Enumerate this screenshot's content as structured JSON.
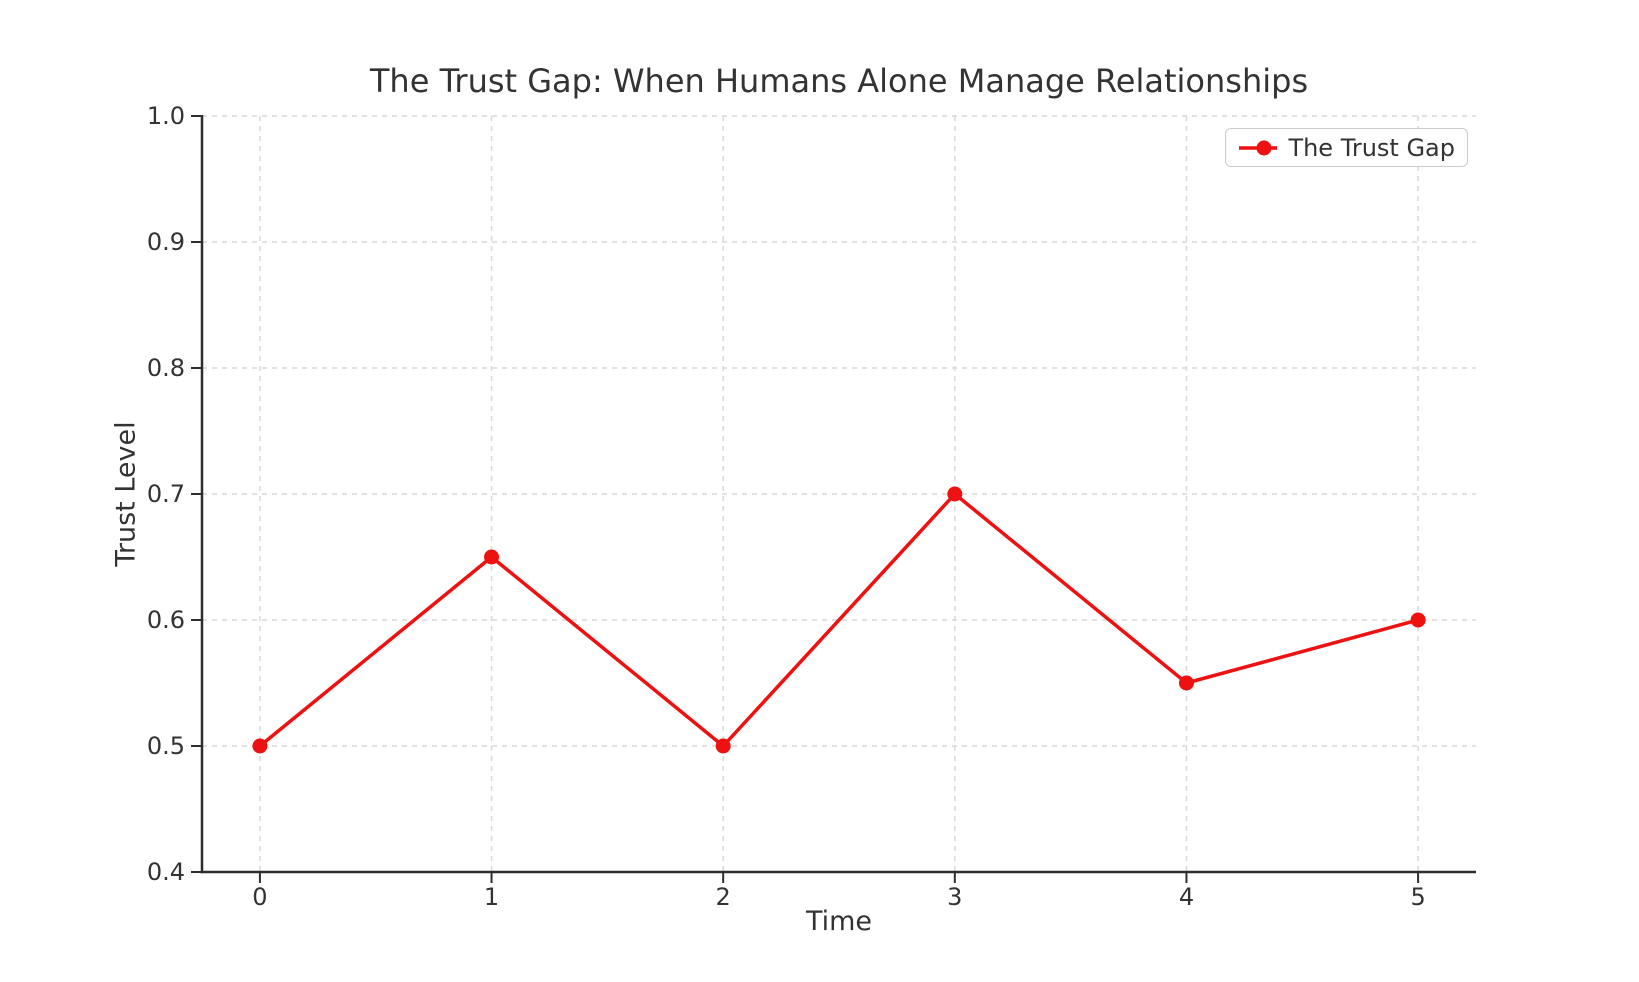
{
  "chart_data": {
    "type": "line",
    "title": "The Trust Gap: When Humans Alone Manage Relationships",
    "xlabel": "Time",
    "ylabel": "Trust Level",
    "x": [
      0,
      1,
      2,
      3,
      4,
      5
    ],
    "series": [
      {
        "name": "The Trust Gap",
        "values": [
          0.5,
          0.65,
          0.5,
          0.7,
          0.55,
          0.6
        ],
        "color": "#ee1111",
        "marker": "circle"
      }
    ],
    "xlim": [
      -0.25,
      5.25
    ],
    "ylim": [
      0.4,
      1.0
    ],
    "x_ticks": [
      0,
      1,
      2,
      3,
      4,
      5
    ],
    "x_tick_labels": [
      "0",
      "1",
      "2",
      "3",
      "4",
      "5"
    ],
    "y_ticks": [
      0.4,
      0.5,
      0.6,
      0.7,
      0.8,
      0.9,
      1.0
    ],
    "y_tick_labels": [
      "0.4",
      "0.5",
      "0.6",
      "0.7",
      "0.8",
      "0.9",
      "1.0"
    ],
    "grid": true,
    "grid_style": "dashed",
    "legend": {
      "position": "upper right"
    },
    "colors": {
      "line": "#ee1111",
      "grid": "#d9d9d9",
      "axis": "#2e2e2e",
      "text": "#333333",
      "legend_border": "#cccccc",
      "background": "#ffffff"
    }
  }
}
